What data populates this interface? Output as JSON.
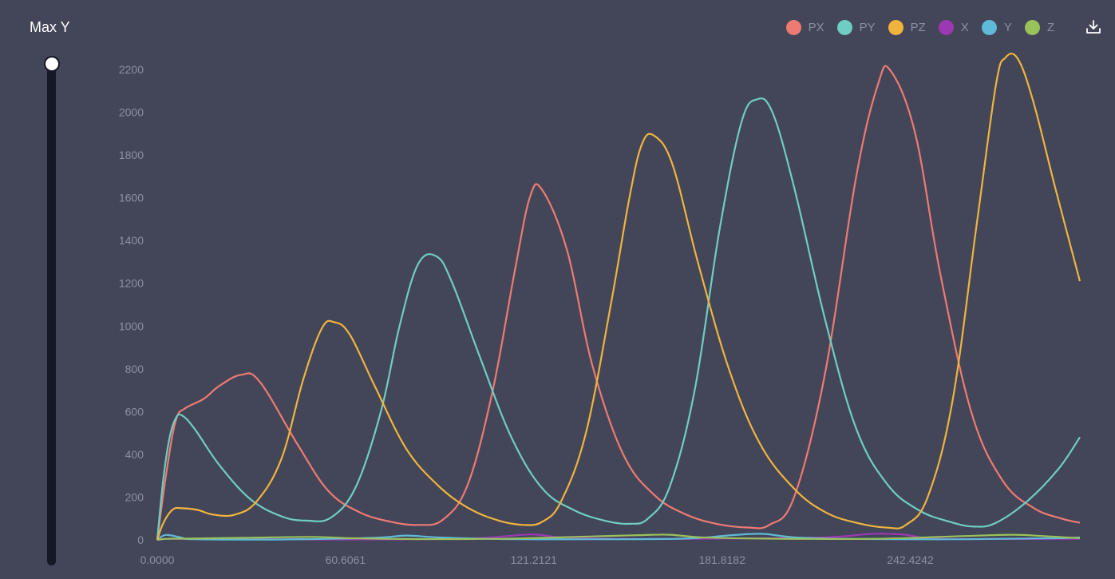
{
  "slider": {
    "title": "Max Y",
    "value": 2200
  },
  "legend": [
    {
      "name": "PX",
      "color": "#ee7a72"
    },
    {
      "name": "PY",
      "color": "#6fcdc4"
    },
    {
      "name": "PZ",
      "color": "#f0b43c"
    },
    {
      "name": "X",
      "color": "#9b38b4"
    },
    {
      "name": "Y",
      "color": "#5fbad8"
    },
    {
      "name": "Z",
      "color": "#99c25a"
    }
  ],
  "toolbar": {
    "download_icon": "download-icon"
  },
  "chart_data": {
    "type": "line",
    "xlim": [
      0,
      297
    ],
    "ylim": [
      0,
      2250
    ],
    "yticks": [
      0,
      200,
      400,
      600,
      800,
      1000,
      1200,
      1400,
      1600,
      1800,
      2000,
      2200
    ],
    "xticks": [
      "0.0000",
      "60.6061",
      "121.2121",
      "181.8182",
      "242.4242"
    ],
    "xtick_values": [
      0,
      60.6061,
      121.2121,
      181.8182,
      242.4242
    ],
    "grid": false,
    "legend_position": "top-right",
    "series": [
      {
        "name": "PX",
        "color": "#ee7a72",
        "points": [
          [
            0,
            0
          ],
          [
            3,
            320
          ],
          [
            6,
            560
          ],
          [
            9,
            615
          ],
          [
            15,
            660
          ],
          [
            20,
            720
          ],
          [
            27,
            772
          ],
          [
            33,
            740
          ],
          [
            45,
            450
          ],
          [
            55,
            230
          ],
          [
            65,
            130
          ],
          [
            75,
            85
          ],
          [
            84,
            70
          ],
          [
            92,
            95
          ],
          [
            100,
            260
          ],
          [
            108,
            700
          ],
          [
            115,
            1250
          ],
          [
            120,
            1605
          ],
          [
            124,
            1635
          ],
          [
            132,
            1350
          ],
          [
            140,
            820
          ],
          [
            150,
            400
          ],
          [
            160,
            210
          ],
          [
            170,
            120
          ],
          [
            180,
            75
          ],
          [
            190,
            58
          ],
          [
            197,
            70
          ],
          [
            205,
            200
          ],
          [
            215,
            780
          ],
          [
            225,
            1700
          ],
          [
            232,
            2130
          ],
          [
            236,
            2195
          ],
          [
            244,
            1900
          ],
          [
            252,
            1250
          ],
          [
            262,
            600
          ],
          [
            272,
            280
          ],
          [
            282,
            150
          ],
          [
            291,
            100
          ],
          [
            297,
            80
          ]
        ]
      },
      {
        "name": "PY",
        "color": "#6fcdc4",
        "points": [
          [
            0,
            0
          ],
          [
            2,
            290
          ],
          [
            4,
            480
          ],
          [
            6,
            570
          ],
          [
            8,
            582
          ],
          [
            12,
            520
          ],
          [
            20,
            350
          ],
          [
            30,
            190
          ],
          [
            40,
            110
          ],
          [
            48,
            90
          ],
          [
            56,
            105
          ],
          [
            64,
            250
          ],
          [
            72,
            600
          ],
          [
            78,
            1000
          ],
          [
            84,
            1290
          ],
          [
            90,
            1325
          ],
          [
            95,
            1200
          ],
          [
            104,
            850
          ],
          [
            114,
            480
          ],
          [
            124,
            240
          ],
          [
            134,
            140
          ],
          [
            144,
            90
          ],
          [
            152,
            75
          ],
          [
            158,
            100
          ],
          [
            165,
            250
          ],
          [
            173,
            700
          ],
          [
            181,
            1450
          ],
          [
            188,
            1950
          ],
          [
            193,
            2060
          ],
          [
            198,
            2000
          ],
          [
            205,
            1650
          ],
          [
            215,
            1030
          ],
          [
            225,
            520
          ],
          [
            235,
            260
          ],
          [
            245,
            140
          ],
          [
            255,
            85
          ],
          [
            263,
            62
          ],
          [
            270,
            80
          ],
          [
            280,
            180
          ],
          [
            290,
            330
          ],
          [
            297,
            480
          ]
        ]
      },
      {
        "name": "PZ",
        "color": "#f0b43c",
        "points": [
          [
            0,
            0
          ],
          [
            2,
            80
          ],
          [
            5,
            142
          ],
          [
            8,
            148
          ],
          [
            13,
            140
          ],
          [
            18,
            118
          ],
          [
            25,
            118
          ],
          [
            32,
            180
          ],
          [
            40,
            380
          ],
          [
            47,
            750
          ],
          [
            53,
            990
          ],
          [
            57,
            1018
          ],
          [
            62,
            960
          ],
          [
            70,
            720
          ],
          [
            80,
            430
          ],
          [
            90,
            260
          ],
          [
            100,
            150
          ],
          [
            110,
            90
          ],
          [
            118,
            70
          ],
          [
            124,
            85
          ],
          [
            130,
            180
          ],
          [
            138,
            500
          ],
          [
            146,
            1100
          ],
          [
            152,
            1600
          ],
          [
            156,
            1850
          ],
          [
            160,
            1890
          ],
          [
            166,
            1750
          ],
          [
            174,
            1300
          ],
          [
            184,
            800
          ],
          [
            194,
            450
          ],
          [
            205,
            240
          ],
          [
            215,
            130
          ],
          [
            225,
            80
          ],
          [
            235,
            57
          ],
          [
            241,
            70
          ],
          [
            248,
            200
          ],
          [
            256,
            650
          ],
          [
            264,
            1500
          ],
          [
            270,
            2130
          ],
          [
            273,
            2255
          ],
          [
            277,
            2250
          ],
          [
            282,
            2050
          ],
          [
            289,
            1650
          ],
          [
            297,
            1210
          ]
        ]
      },
      {
        "name": "X",
        "color": "#9b38b4",
        "points": [
          [
            0,
            0
          ],
          [
            4,
            5
          ],
          [
            10,
            4
          ],
          [
            30,
            3
          ],
          [
            60,
            2
          ],
          [
            100,
            6
          ],
          [
            120,
            25
          ],
          [
            130,
            12
          ],
          [
            150,
            5
          ],
          [
            180,
            6
          ],
          [
            215,
            12
          ],
          [
            230,
            28
          ],
          [
            240,
            25
          ],
          [
            250,
            6
          ],
          [
            270,
            4
          ],
          [
            297,
            5
          ]
        ]
      },
      {
        "name": "Y",
        "color": "#5fbad8",
        "points": [
          [
            0,
            0
          ],
          [
            2,
            20
          ],
          [
            4,
            22
          ],
          [
            8,
            10
          ],
          [
            12,
            3
          ],
          [
            40,
            2
          ],
          [
            70,
            10
          ],
          [
            80,
            20
          ],
          [
            90,
            12
          ],
          [
            110,
            4
          ],
          [
            140,
            3
          ],
          [
            170,
            6
          ],
          [
            185,
            22
          ],
          [
            195,
            28
          ],
          [
            205,
            12
          ],
          [
            225,
            4
          ],
          [
            260,
            3
          ],
          [
            290,
            8
          ],
          [
            297,
            12
          ]
        ]
      },
      {
        "name": "Z",
        "color": "#99c25a",
        "points": [
          [
            0,
            0
          ],
          [
            3,
            5
          ],
          [
            10,
            6
          ],
          [
            30,
            10
          ],
          [
            50,
            14
          ],
          [
            62,
            8
          ],
          [
            80,
            4
          ],
          [
            110,
            5
          ],
          [
            140,
            16
          ],
          [
            155,
            22
          ],
          [
            165,
            24
          ],
          [
            175,
            12
          ],
          [
            195,
            6
          ],
          [
            230,
            5
          ],
          [
            260,
            18
          ],
          [
            275,
            24
          ],
          [
            285,
            18
          ],
          [
            297,
            8
          ]
        ]
      }
    ]
  }
}
